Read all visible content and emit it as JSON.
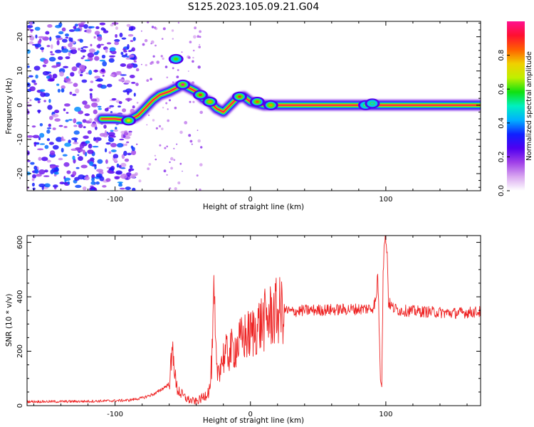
{
  "title": "S125.2023.105.09.21.G04",
  "chart_data": [
    {
      "type": "heatmap",
      "xlabel": "Height of straight line (km)",
      "ylabel": "Frequency (Hz)",
      "xlim": [
        -165,
        170
      ],
      "ylim": [
        -25,
        24.5
      ],
      "xticks": [
        -100,
        0,
        100
      ],
      "yticks": [
        -20,
        -10,
        0,
        10,
        20
      ],
      "grid": false,
      "colorbar": {
        "label": "Normalized spectral amplitude",
        "range": [
          0,
          1
        ],
        "ticks": [
          "0.0",
          "0.2",
          "0.4",
          "0.6",
          "0.8"
        ],
        "colors": [
          "#ffffff",
          "#d9a7f0",
          "#a040e8",
          "#5000f0",
          "#1020ff",
          "#00b0ff",
          "#00f0c0",
          "#10e010",
          "#c0f000",
          "#f0d000",
          "#ff6000",
          "#ff1030",
          "#ff1090"
        ]
      },
      "ridge": {
        "x": [
          -110,
          -100,
          -90,
          -83,
          -78,
          -72,
          -67,
          -60,
          -55,
          -50,
          -45,
          -40,
          -35,
          -30,
          -25,
          -20,
          -15,
          -10,
          -5,
          0,
          10,
          20,
          40,
          60,
          80,
          100,
          120,
          140,
          170
        ],
        "y": [
          -4,
          -4,
          -4.5,
          -3,
          -1,
          1.5,
          3,
          4,
          5,
          6,
          5,
          4,
          2,
          1,
          -1,
          -2,
          0,
          2,
          2.5,
          1,
          0,
          0,
          0,
          0,
          0,
          0,
          0,
          0,
          0
        ]
      },
      "noise_region_x": [
        -165,
        -85
      ],
      "blobs": [
        {
          "x": -50,
          "y": 6,
          "amp": 1.0
        },
        {
          "x": -37,
          "y": 3,
          "amp": 0.9
        },
        {
          "x": -30,
          "y": 1,
          "amp": 0.8
        },
        {
          "x": -8,
          "y": 2.5,
          "amp": 0.9
        },
        {
          "x": 5,
          "y": 1,
          "amp": 0.85
        },
        {
          "x": 15,
          "y": 0,
          "amp": 0.8
        },
        {
          "x": -90,
          "y": -4.5,
          "amp": 0.75
        },
        {
          "x": -55,
          "y": 13.5,
          "amp": 0.6
        },
        {
          "x": 85,
          "y": 0,
          "amp": 0.5
        },
        {
          "x": 90,
          "y": 0.5,
          "amp": 0.45
        }
      ]
    },
    {
      "type": "line",
      "xlabel": "Height of straight line (km)",
      "ylabel": "SNR (10 * v/v)",
      "xlim": [
        -165,
        170
      ],
      "ylim": [
        0,
        625
      ],
      "xticks": [
        -100,
        0,
        100
      ],
      "yticks": [
        0,
        200,
        400,
        600
      ],
      "grid": false,
      "color": "#ee2222",
      "x": [
        -165,
        -140,
        -120,
        -100,
        -90,
        -80,
        -70,
        -60,
        -57,
        -55,
        -50,
        -45,
        -40,
        -35,
        -30,
        -28,
        -27,
        -25,
        -20,
        -15,
        -10,
        -5,
        0,
        5,
        10,
        15,
        20,
        25,
        30,
        40,
        60,
        80,
        90,
        93,
        94,
        96,
        97,
        98,
        99,
        100,
        101,
        102,
        105,
        110,
        130,
        150,
        170
      ],
      "y": [
        15,
        15,
        16,
        18,
        20,
        28,
        45,
        80,
        215,
        70,
        35,
        20,
        15,
        30,
        60,
        200,
        385,
        120,
        180,
        200,
        220,
        250,
        260,
        290,
        310,
        330,
        345,
        352,
        345,
        350,
        352,
        355,
        358,
        390,
        500,
        100,
        75,
        500,
        600,
        625,
        560,
        380,
        360,
        350,
        345,
        340,
        345
      ]
    }
  ]
}
